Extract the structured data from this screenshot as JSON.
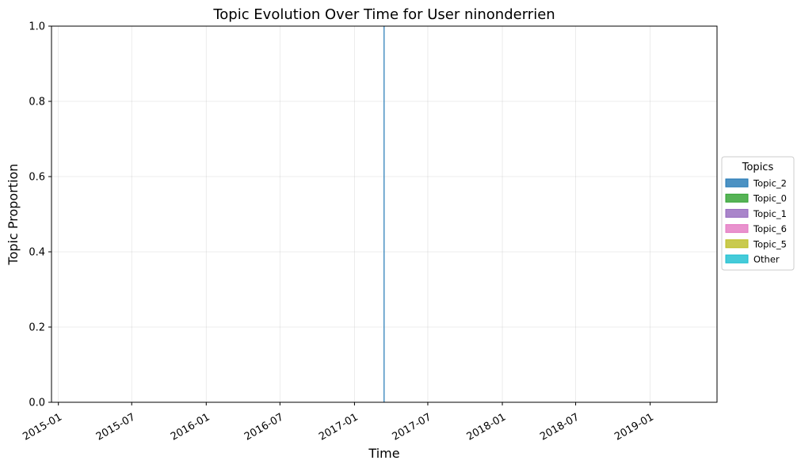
{
  "chart_data": {
    "type": "area",
    "stacked": true,
    "title": "Topic Evolution Over Time for User ninonderrien",
    "xlabel": "Time",
    "ylabel": "Topic Proportion",
    "xlim": [
      "2014-12-15",
      "2019-06-15"
    ],
    "ylim": [
      0,
      1
    ],
    "x_ticks": [
      "2015-01-01",
      "2015-07-01",
      "2016-01-01",
      "2016-07-01",
      "2017-01-01",
      "2017-07-01",
      "2018-01-01",
      "2018-07-01",
      "2019-01-01"
    ],
    "x_tick_labels": [
      "2015-01",
      "2015-07",
      "2016-01",
      "2016-07",
      "2017-01",
      "2017-07",
      "2018-01",
      "2018-07",
      "2019-01"
    ],
    "y_ticks": [
      0.0,
      0.2,
      0.4,
      0.6,
      0.8,
      1.0
    ],
    "y_tick_labels": [
      "0.0",
      "0.2",
      "0.4",
      "0.6",
      "0.8",
      "1.0"
    ],
    "grid": true,
    "legend_title": "Topics",
    "legend_position": "right",
    "series": [
      {
        "name": "Topic_2",
        "color": "#1f77b4",
        "x": [
          "2017-03-15"
        ],
        "values": [
          1.0
        ]
      },
      {
        "name": "Topic_0",
        "color": "#2ca02c",
        "x": [
          "2017-03-15"
        ],
        "values": [
          0.0
        ]
      },
      {
        "name": "Topic_1",
        "color": "#9467bd",
        "x": [
          "2017-03-15"
        ],
        "values": [
          0.0
        ]
      },
      {
        "name": "Topic_6",
        "color": "#e377c2",
        "x": [
          "2017-03-15"
        ],
        "values": [
          0.0
        ]
      },
      {
        "name": "Topic_5",
        "color": "#bcbd22",
        "x": [
          "2017-03-15"
        ],
        "values": [
          0.0
        ]
      },
      {
        "name": "Other",
        "color": "#17becf",
        "x": [
          "2017-03-15"
        ],
        "values": [
          0.0
        ]
      }
    ]
  }
}
